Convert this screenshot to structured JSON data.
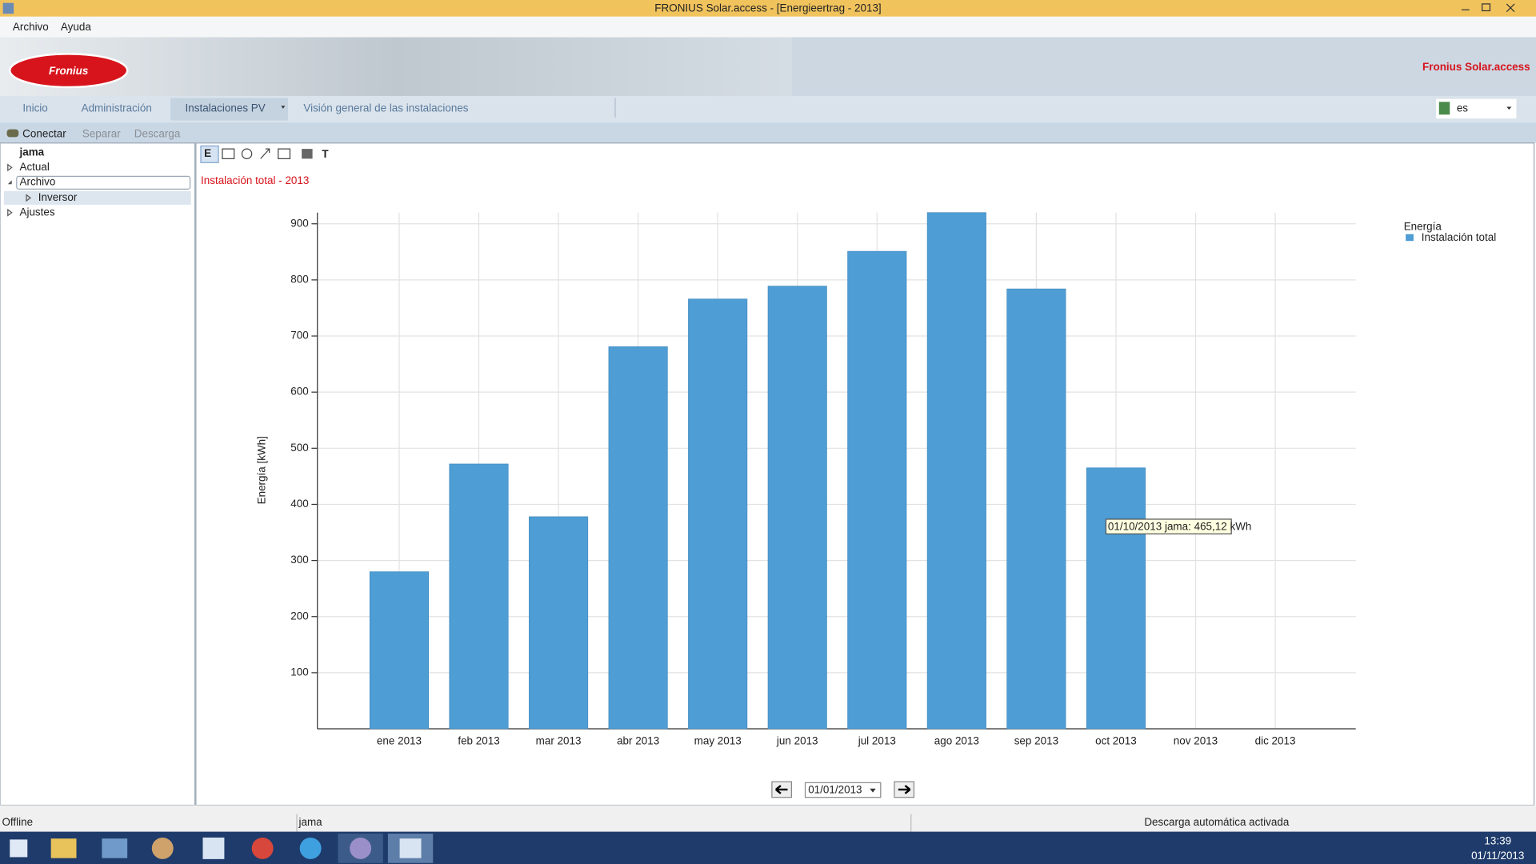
{
  "window": {
    "title": "FRONIUS Solar.access - [Energieertrag - 2013]"
  },
  "menu": [
    "Archivo",
    "Ayuda"
  ],
  "header": {
    "logo": "Fronius",
    "app_name": "Fronius Solar.access"
  },
  "nav": {
    "tabs": [
      "Inicio",
      "Administración",
      "Instalaciones PV",
      "Visión general de las instalaciones"
    ],
    "language": "es"
  },
  "toolbar": [
    "Conectar",
    "Separar",
    "Descarga"
  ],
  "tree": [
    "jama",
    "Actual",
    "Archivo",
    "Inversor",
    "Ajustes"
  ],
  "chart_tools": [
    "E",
    "T"
  ],
  "chart_data": {
    "type": "bar",
    "title": "Instalación total - 2013",
    "y_label": "Energía [kWh]",
    "legend_title": "Energía",
    "categories": [
      "ene 2013",
      "feb 2013",
      "mar 2013",
      "abr 2013",
      "may 2013",
      "jun 2013",
      "jul 2013",
      "ago 2013",
      "sep 2013",
      "oct 2013",
      "nov 2013",
      "dic 2013"
    ],
    "series": [
      {
        "name": "Instalación total",
        "color": "#4e9dd4",
        "values": [
          280,
          472,
          378,
          681,
          766,
          789,
          851,
          920,
          784,
          465.12,
          null,
          null
        ]
      }
    ],
    "ylim": [
      0,
      920
    ],
    "yticks": [
      100,
      200,
      300,
      400,
      500,
      600,
      700,
      800,
      900
    ],
    "grid": true,
    "tooltip": "01/10/2013 jama: 465,12 kWh"
  },
  "date_picker": "01/01/2013",
  "status": [
    "Offline",
    "jama",
    "Descarga automática activada"
  ],
  "clock": {
    "time": "13:39",
    "date": "01/11/2013"
  }
}
